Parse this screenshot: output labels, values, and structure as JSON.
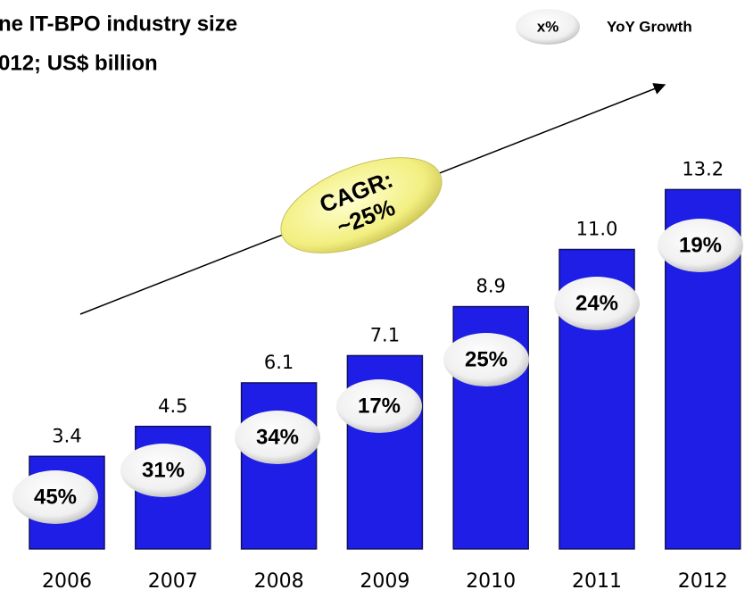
{
  "chart_data": {
    "type": "bar",
    "title_lines": [
      "ne IT-BPO industry size",
      "012; US$ billion"
    ],
    "categories": [
      "2006",
      "2007",
      "2008",
      "2009",
      "2010",
      "2011",
      "2012"
    ],
    "values": [
      3.4,
      4.5,
      6.1,
      7.1,
      8.9,
      11.0,
      13.2
    ],
    "value_labels": [
      "3.4",
      "4.5",
      "6.1",
      "7.1",
      "8.9",
      "11.0",
      "13.2"
    ],
    "growth_labels": [
      "45%",
      "31%",
      "34%",
      "17%",
      "25%",
      "24%",
      "19%"
    ],
    "color": "#1e1ee6",
    "legend": {
      "symbol": "x%",
      "label": "YoY Growth"
    },
    "annotation": [
      "CAGR:",
      "~25%"
    ]
  }
}
